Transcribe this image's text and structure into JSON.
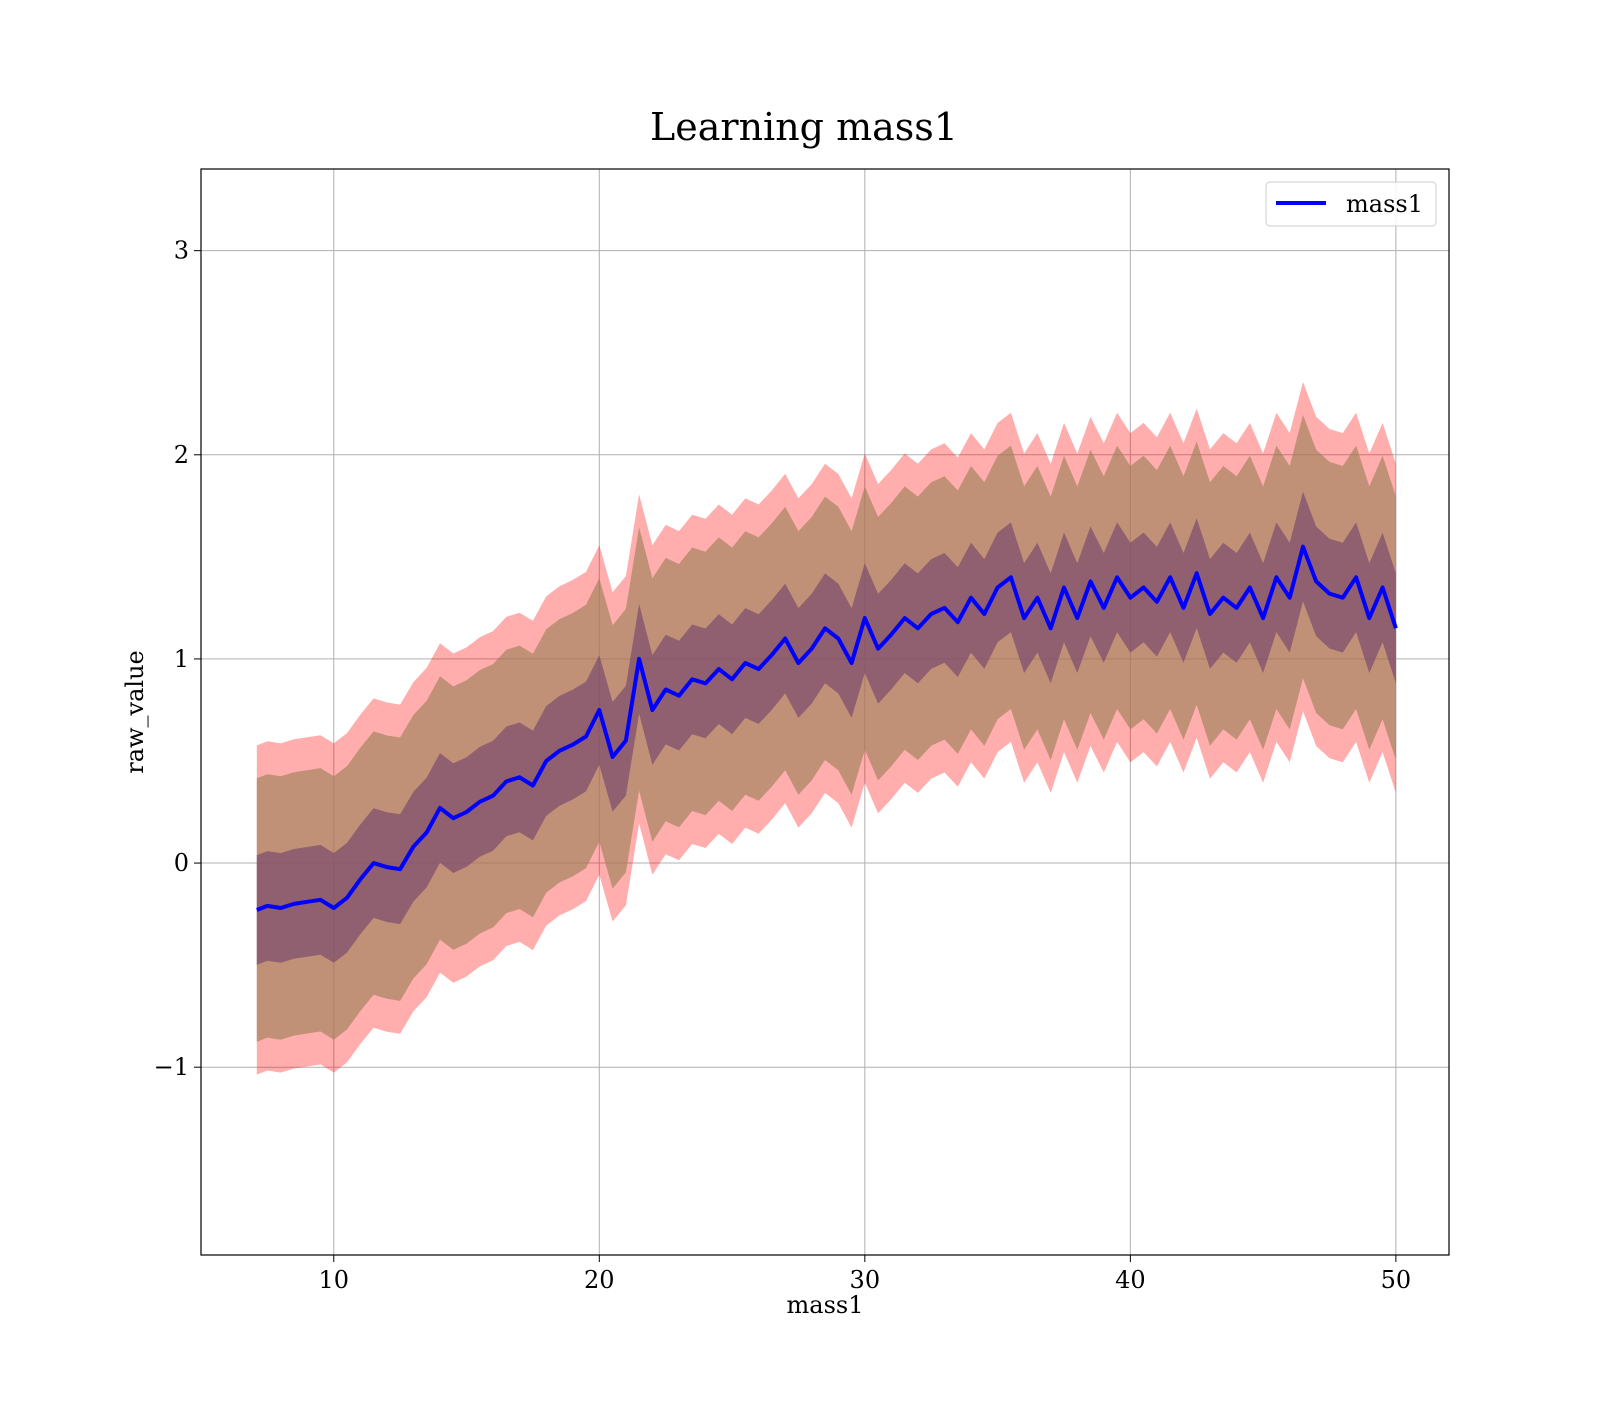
{
  "chart_data": {
    "type": "line",
    "title": "Learning mass1",
    "xlabel": "mass1",
    "ylabel": "raw_value",
    "xlim": [
      5,
      52
    ],
    "ylim": [
      -1.92,
      3.4
    ],
    "xticks": [
      10,
      20,
      30,
      40,
      50
    ],
    "yticks": [
      -1,
      0,
      1,
      2,
      3
    ],
    "xtick_labels": [
      "10",
      "20",
      "30",
      "40",
      "50"
    ],
    "ytick_labels": [
      "−1",
      "0",
      "1",
      "2",
      "3"
    ],
    "grid": true,
    "legend_position": "upper-right",
    "colors": {
      "mean_line": "#0000ff",
      "outer_band": "#ff0000",
      "middle_band": "#a0825a",
      "inner_band": "#7a4a6e"
    },
    "series": [
      {
        "name": "mass1",
        "x": [
          7.1,
          7.5,
          8,
          8.5,
          9,
          9.5,
          10,
          10.5,
          11,
          11.5,
          12,
          12.5,
          13,
          13.5,
          14,
          14.5,
          15,
          15.5,
          16,
          16.5,
          17,
          17.5,
          18,
          18.5,
          19,
          19.5,
          20,
          20.5,
          21,
          21.5,
          22,
          22.5,
          23,
          23.5,
          24,
          24.5,
          25,
          25.5,
          26,
          26.5,
          27,
          27.5,
          28,
          28.5,
          29,
          29.5,
          30,
          30.5,
          31,
          31.5,
          32,
          32.5,
          33,
          33.5,
          34,
          34.5,
          35,
          35.5,
          36,
          36.5,
          37,
          37.5,
          38,
          38.5,
          39,
          39.5,
          40,
          40.5,
          41,
          41.5,
          42,
          42.5,
          43,
          43.5,
          44,
          44.5,
          45,
          45.5,
          46,
          46.5,
          47,
          47.5,
          48,
          48.5,
          49,
          49.5,
          50
        ],
        "y": [
          -0.23,
          -0.21,
          -0.22,
          -0.2,
          -0.19,
          -0.18,
          -0.22,
          -0.17,
          -0.08,
          0.0,
          -0.02,
          -0.03,
          0.08,
          0.15,
          0.27,
          0.22,
          0.25,
          0.3,
          0.33,
          0.4,
          0.42,
          0.38,
          0.5,
          0.55,
          0.58,
          0.62,
          0.75,
          0.52,
          0.6,
          1.0,
          0.75,
          0.85,
          0.82,
          0.9,
          0.88,
          0.95,
          0.9,
          0.98,
          0.95,
          1.02,
          1.1,
          0.98,
          1.05,
          1.15,
          1.1,
          0.98,
          1.2,
          1.05,
          1.12,
          1.2,
          1.15,
          1.22,
          1.25,
          1.18,
          1.3,
          1.22,
          1.35,
          1.4,
          1.2,
          1.3,
          1.15,
          1.35,
          1.2,
          1.38,
          1.25,
          1.4,
          1.3,
          1.35,
          1.28,
          1.4,
          1.25,
          1.42,
          1.22,
          1.3,
          1.25,
          1.35,
          1.2,
          1.4,
          1.3,
          1.55,
          1.38,
          1.32,
          1.3,
          1.4,
          1.2,
          1.35,
          1.15
        ]
      }
    ],
    "bands": [
      {
        "kind": "outer",
        "sigma": 3
      },
      {
        "kind": "middle",
        "sigma": 2.4
      },
      {
        "kind": "inner",
        "sigma": 1
      }
    ],
    "band_sigma_base": [
      0.48,
      0.48,
      0.48,
      0.48,
      0.48,
      0.48,
      0.48,
      0.48,
      0.48,
      0.48,
      0.48,
      0.48,
      0.48,
      0.48,
      0.48,
      0.48,
      0.48,
      0.48,
      0.48,
      0.48,
      0.48,
      0.48,
      0.48,
      0.48,
      0.48,
      0.48,
      0.48,
      0.48,
      0.48,
      0.48,
      0.48,
      0.48,
      0.48,
      0.48,
      0.48,
      0.48,
      0.48,
      0.48,
      0.48,
      0.48,
      0.48,
      0.48,
      0.48,
      0.48,
      0.48,
      0.48,
      0.48,
      0.48,
      0.48,
      0.48,
      0.48,
      0.48,
      0.48,
      0.48,
      0.48,
      0.48,
      0.48,
      0.48,
      0.48,
      0.48,
      0.48,
      0.48,
      0.48,
      0.48,
      0.48,
      0.48,
      0.48,
      0.48,
      0.48,
      0.48,
      0.48,
      0.48,
      0.48,
      0.48,
      0.48,
      0.48,
      0.48,
      0.48,
      0.48,
      0.48,
      0.48,
      0.48,
      0.48,
      0.48,
      0.48,
      0.48,
      0.48,
      0.48,
      0.48
    ]
  }
}
